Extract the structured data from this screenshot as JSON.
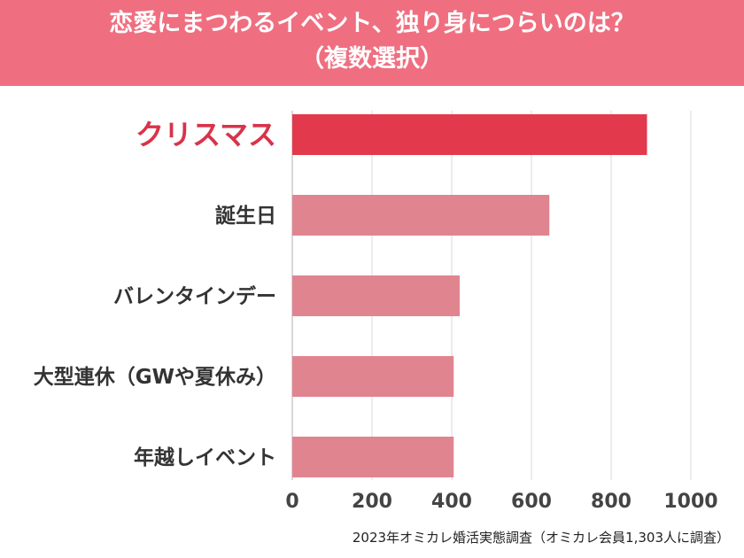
{
  "header": {
    "title_line1": "恋愛にまつわるイベント、独り身につらいのは？",
    "title_line2": "（複数選択）"
  },
  "colors": {
    "banner": "#ef6f80",
    "highlight_bar": "#e2394d",
    "bar": "#e08590",
    "highlight_label": "#d8334a",
    "label": "#333333",
    "grid": "#e6e6e6"
  },
  "chart_data": {
    "type": "bar",
    "orientation": "horizontal",
    "categories": [
      "クリスマス",
      "誕生日",
      "バレンタインデー",
      "大型連休（GWや夏休み）",
      "年越しイベント"
    ],
    "values": [
      890,
      645,
      420,
      405,
      405
    ],
    "highlight_index": 0,
    "xlim": [
      0,
      1000
    ],
    "xticks": [
      "0",
      "200",
      "400",
      "600",
      "800",
      "1000"
    ],
    "grid": true
  },
  "footer": {
    "source": "2023年オミカレ婚活実態調査（オミカレ会員1,303人に調査）"
  }
}
